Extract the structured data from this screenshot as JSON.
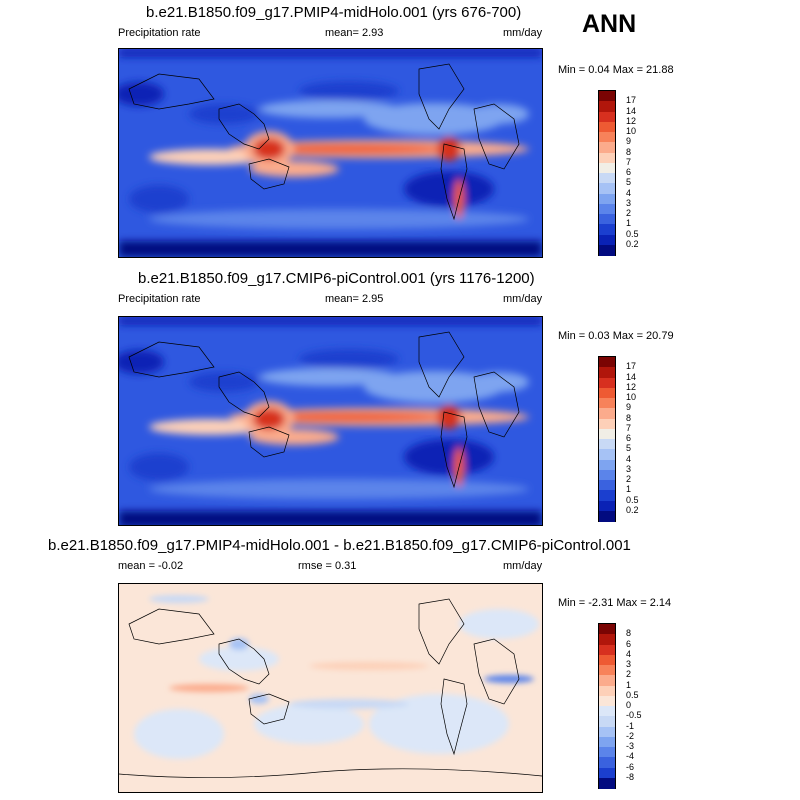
{
  "season": "ANN",
  "panels": [
    {
      "title": "b.e21.B1850.f09_g17.PMIP4-midHolo.001 (yrs 676-700)",
      "left_label": "Precipitation rate",
      "center_label": "mean=   2.93",
      "units": "mm/day",
      "minmax": "Min =   0.04 Max =  21.88",
      "type": "abs",
      "colorbar_labels": [
        "17",
        "14",
        "12",
        "10",
        "9",
        "8",
        "7",
        "6",
        "5",
        "4",
        "3",
        "2",
        "1",
        "0.5",
        "0.2"
      ]
    },
    {
      "title": "b.e21.B1850.f09_g17.CMIP6-piControl.001 (yrs 1176-1200)",
      "left_label": "Precipitation rate",
      "center_label": "mean=   2.95",
      "units": "mm/day",
      "minmax": "Min =   0.03 Max =  20.79",
      "type": "abs",
      "colorbar_labels": [
        "17",
        "14",
        "12",
        "10",
        "9",
        "8",
        "7",
        "6",
        "5",
        "4",
        "3",
        "2",
        "1",
        "0.5",
        "0.2"
      ]
    },
    {
      "title": "b.e21.B1850.f09_g17.PMIP4-midHolo.001 - b.e21.B1850.f09_g17.CMIP6-piControl.001",
      "left_label": "mean =   -0.02",
      "center_label": "rmse =    0.31",
      "units": "mm/day",
      "minmax": "Min =  -2.31 Max =   2.14",
      "type": "diff",
      "colorbar_labels": [
        "8",
        "6",
        "4",
        "3",
        "2",
        "1",
        "0.5",
        "0",
        "-0.5",
        "-1",
        "-2",
        "-3",
        "-4",
        "-6",
        "-8"
      ]
    }
  ],
  "palettes": {
    "abs": [
      "#7a0403",
      "#b1160b",
      "#d7301f",
      "#ee5a33",
      "#f7825a",
      "#fbab8c",
      "#fdd0b8",
      "#f1eee6",
      "#c8d9f5",
      "#a6c2f5",
      "#7ea4f0",
      "#5b84ea",
      "#3a62df",
      "#1b3fcf",
      "#0a22b5",
      "#020b80"
    ],
    "diff": [
      "#7a0403",
      "#b1160b",
      "#d7301f",
      "#ee5a33",
      "#f7825a",
      "#fbab8c",
      "#fdd0b8",
      "#fbe6d8",
      "#dce7f8",
      "#c8d9f5",
      "#a6c2f5",
      "#7ea4f0",
      "#5b84ea",
      "#3a62df",
      "#1b3fcf",
      "#020b80"
    ]
  }
}
